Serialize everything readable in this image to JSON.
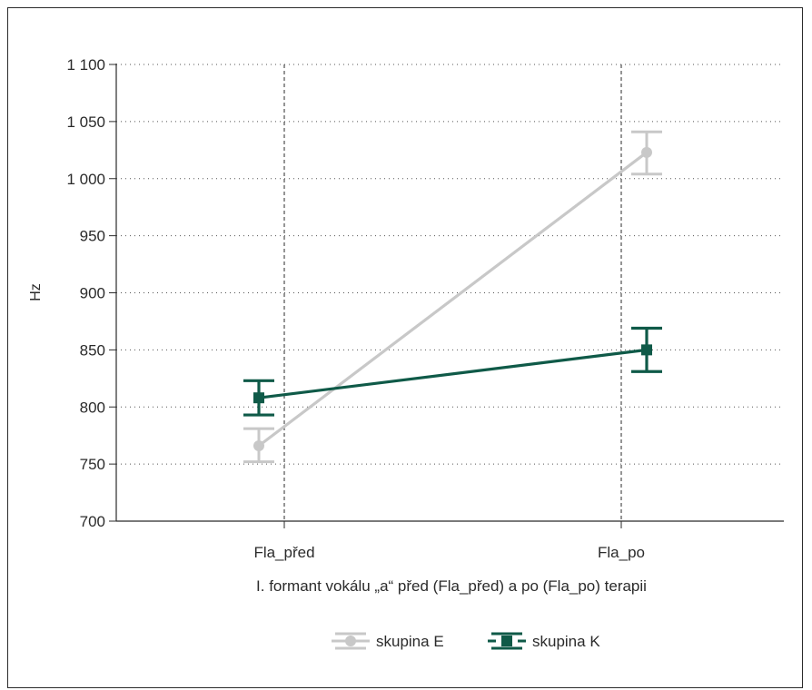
{
  "chart_data": {
    "type": "line",
    "title": "",
    "xlabel": "I. formant vokálu „a“ před (Fla_před) a po (Fla_po) terapii",
    "ylabel": "Hz",
    "categories": [
      "Fla_před",
      "Fla_po"
    ],
    "ylim": [
      700,
      1100
    ],
    "yticks": [
      700,
      750,
      800,
      850,
      900,
      950,
      1000,
      1050,
      1100
    ],
    "ytick_labels": [
      "700",
      "750",
      "800",
      "850",
      "900",
      "950",
      "1 000",
      "1 050",
      "1 100"
    ],
    "grid": "dotted horizontal at ticks, dashed vertical at categories",
    "legend_position": "bottom-center",
    "series": [
      {
        "name": "skupina E",
        "color": "#c8c8c8",
        "marker": "circle",
        "values": [
          766,
          1023
        ],
        "err_low": [
          752,
          1004
        ],
        "err_high": [
          781,
          1041
        ]
      },
      {
        "name": "skupina K",
        "color": "#0f5a48",
        "marker": "square",
        "values": [
          808,
          850
        ],
        "err_low": [
          793,
          831
        ],
        "err_high": [
          823,
          869
        ]
      }
    ]
  }
}
